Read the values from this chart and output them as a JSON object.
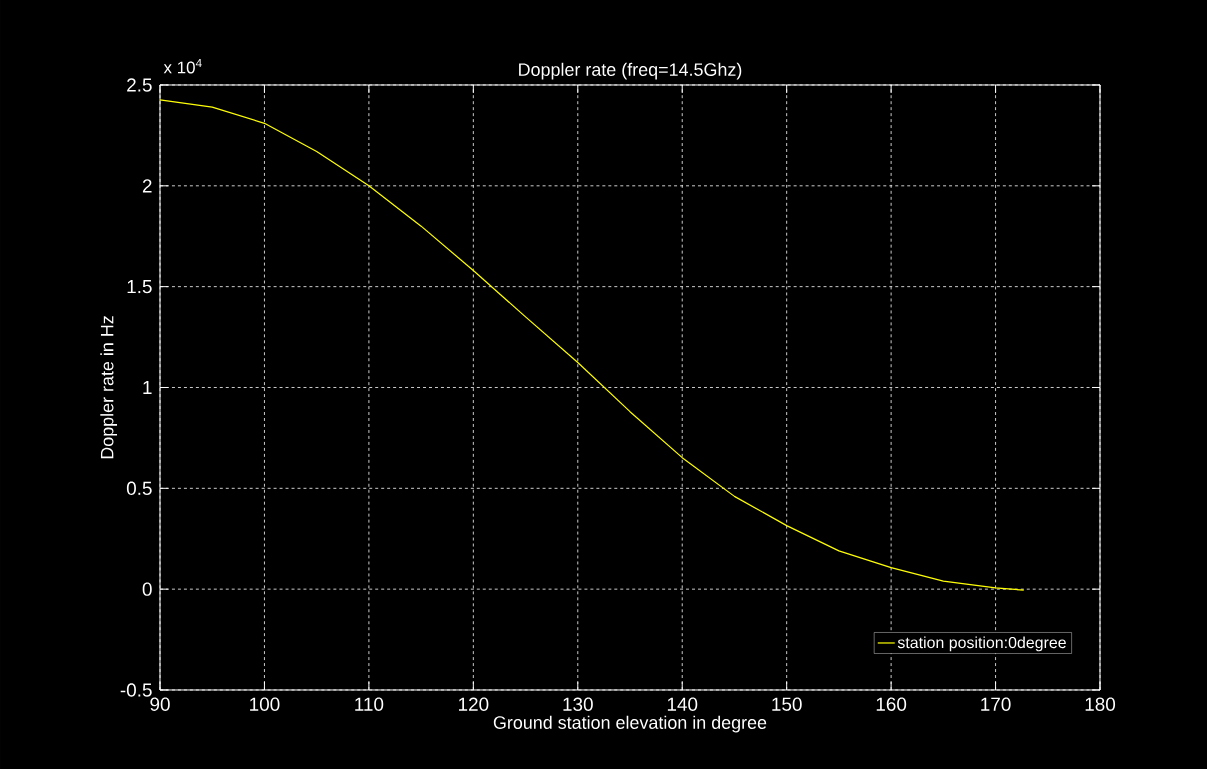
{
  "chart_data": {
    "type": "line",
    "title": "Doppler rate (freq=14.5Ghz)",
    "xlabel": "Ground station elevation in degree",
    "ylabel": "Doppler rate in Hz",
    "annotations": [
      "x 10$^{4}$"
    ],
    "series": [
      {
        "name": "station position:0degree",
        "color": "#ffff00",
        "x": [
          90,
          95,
          100,
          105,
          110,
          115,
          120,
          125,
          130,
          135,
          140,
          145,
          150,
          155,
          160,
          165,
          170,
          172.7
        ],
        "values": [
          2.426,
          2.39,
          2.31,
          2.17,
          2.0,
          1.8,
          1.58,
          1.35,
          1.124,
          0.88,
          0.652,
          0.46,
          0.315,
          0.19,
          0.107,
          0.04,
          0.006,
          -0.005
        ]
      }
    ],
    "xlim": [
      90,
      180
    ],
    "xticks": [
      90,
      100,
      110,
      120,
      130,
      140,
      150,
      160,
      170,
      180
    ],
    "ylim": [
      -0.5,
      2.5
    ],
    "yticks": [
      -0.5,
      0,
      0.5,
      1,
      1.5,
      2,
      2.5
    ],
    "grid": true,
    "legend": "bottom right",
    "line_style": "solid",
    "marker": "none"
  }
}
